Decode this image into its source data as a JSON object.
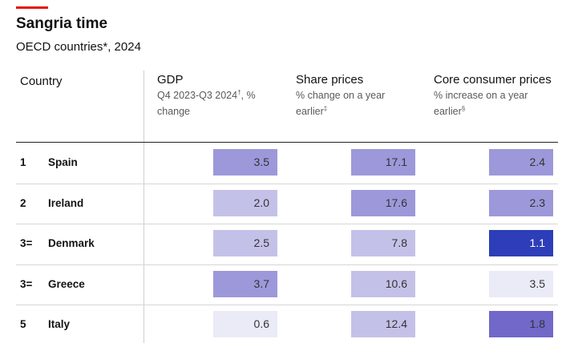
{
  "header": {
    "title": "Sangria time",
    "subtitle": "OECD countries*, 2024"
  },
  "columns": {
    "country": "Country",
    "gdp": {
      "label": "GDP",
      "sub": "Q4 2023-Q3 2024",
      "mark": "†",
      "sub_tail": ", % change"
    },
    "share": {
      "label": "Share prices",
      "sub": "% change on a year earlier",
      "mark": "‡"
    },
    "core": {
      "label": "Core consumer prices",
      "sub": "% increase on a year earlier",
      "mark": "§"
    }
  },
  "colors": {
    "level1": "#ebeaf7",
    "level2": "#c4c1e8",
    "level3": "#9d98da",
    "level4": "#7168c9",
    "level5": "#2d3eb8"
  },
  "chart_data": {
    "type": "table",
    "title": "Sangria time",
    "subtitle": "OECD countries*, 2024",
    "columns": [
      "Country",
      "GDP",
      "Share prices",
      "Core consumer prices"
    ],
    "rows": [
      {
        "rank": "1",
        "country": "Spain",
        "gdp": "3.5",
        "share": "17.1",
        "core": "2.4",
        "gdp_shade": 3,
        "share_shade": 3,
        "core_shade": 3
      },
      {
        "rank": "2",
        "country": "Ireland",
        "gdp": "2.0",
        "share": "17.6",
        "core": "2.3",
        "gdp_shade": 2,
        "share_shade": 3,
        "core_shade": 3
      },
      {
        "rank": "3=",
        "country": "Denmark",
        "gdp": "2.5",
        "share": "7.8",
        "core": "1.1",
        "gdp_shade": 2,
        "share_shade": 2,
        "core_shade": 5
      },
      {
        "rank": "3=",
        "country": "Greece",
        "gdp": "3.7",
        "share": "10.6",
        "core": "3.5",
        "gdp_shade": 3,
        "share_shade": 2,
        "core_shade": 1
      },
      {
        "rank": "5",
        "country": "Italy",
        "gdp": "0.6",
        "share": "12.4",
        "core": "1.8",
        "gdp_shade": 1,
        "share_shade": 2,
        "core_shade": 4
      }
    ]
  }
}
